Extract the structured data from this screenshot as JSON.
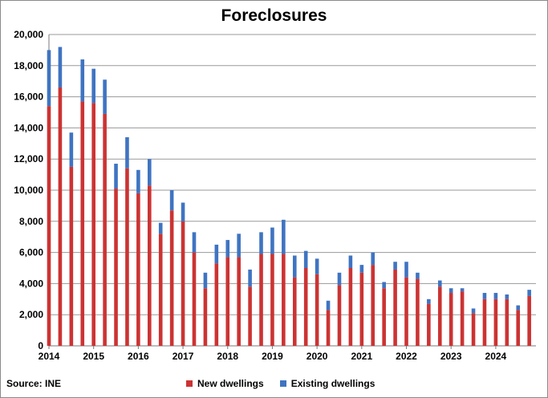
{
  "chart_data": {
    "type": "bar",
    "stacked": true,
    "title": "Foreclosures",
    "xlabel": "",
    "ylabel": "",
    "ylim": [
      0,
      20000
    ],
    "yticks": [
      0,
      2000,
      4000,
      6000,
      8000,
      10000,
      12000,
      14000,
      16000,
      18000,
      20000
    ],
    "ytick_labels": [
      "0",
      "2,000",
      "4,000",
      "6,000",
      "8,000",
      "10,000",
      "12,000",
      "14,000",
      "16,000",
      "18,000",
      "20,000"
    ],
    "xtick_labels": [
      "2014",
      "2015",
      "2016",
      "2017",
      "2018",
      "2019",
      "2020",
      "2021",
      "2022",
      "2023",
      "2024"
    ],
    "grid": true,
    "legend_placement": "bottom",
    "categories": [
      "2014Q1",
      "2014Q2",
      "2014Q3",
      "2014Q4",
      "2015Q1",
      "2015Q2",
      "2015Q3",
      "2015Q4",
      "2016Q1",
      "2016Q2",
      "2016Q3",
      "2016Q4",
      "2017Q1",
      "2017Q2",
      "2017Q3",
      "2017Q4",
      "2018Q1",
      "2018Q2",
      "2018Q3",
      "2018Q4",
      "2019Q1",
      "2019Q2",
      "2019Q3",
      "2019Q4",
      "2020Q1",
      "2020Q2",
      "2020Q3",
      "2020Q4",
      "2021Q1",
      "2021Q2",
      "2021Q3",
      "2021Q4",
      "2022Q1",
      "2022Q2",
      "2022Q3",
      "2022Q4",
      "2023Q1",
      "2023Q2",
      "2023Q3",
      "2023Q4",
      "2024Q1",
      "2024Q2",
      "2024Q3",
      "2024Q4"
    ],
    "series": [
      {
        "name": "New dwellings",
        "color": "#cc3333",
        "values": [
          15400,
          16600,
          11500,
          15700,
          15600,
          14900,
          10100,
          11400,
          9800,
          10300,
          7200,
          8700,
          8000,
          6000,
          3700,
          5300,
          5700,
          5700,
          3800,
          5900,
          5900,
          5900,
          4400,
          5000,
          4600,
          2300,
          3900,
          5000,
          4700,
          5200,
          3700,
          4900,
          4400,
          4300,
          2700,
          3800,
          3400,
          3500,
          2100,
          3000,
          3000,
          3000,
          2300,
          3200
        ]
      },
      {
        "name": "Existing dwellings",
        "color": "#3f74c2",
        "values": [
          3600,
          2600,
          2200,
          2700,
          2200,
          2200,
          1600,
          2000,
          1500,
          1700,
          700,
          1300,
          1200,
          1300,
          1000,
          1200,
          1100,
          1500,
          1100,
          1400,
          1700,
          2200,
          1400,
          1100,
          1000,
          600,
          800,
          800,
          500,
          800,
          400,
          500,
          1000,
          400,
          300,
          400,
          300,
          200,
          300,
          400,
          400,
          300,
          300,
          400
        ]
      }
    ]
  },
  "source_note": "Source: INE"
}
